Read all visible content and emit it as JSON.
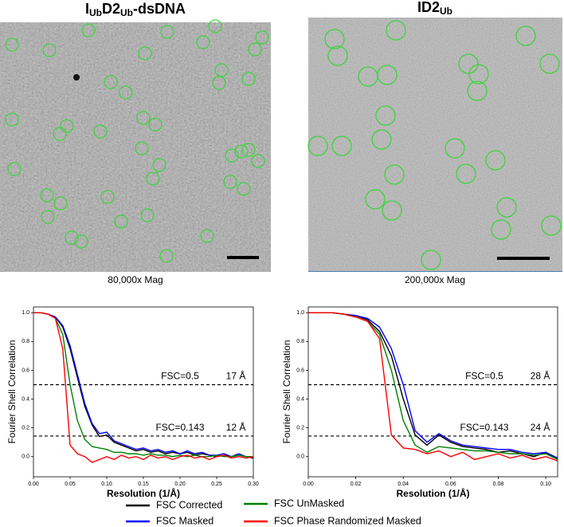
{
  "panels": [
    {
      "title": [
        "I",
        "Ub",
        "D2",
        "Ub",
        "-dsDNA"
      ],
      "caption": "80,000x Mag"
    },
    {
      "title": [
        "ID2",
        "Ub"
      ],
      "caption": "200,000x Mag"
    }
  ],
  "chart_data": [
    {
      "type": "line",
      "xlabel": "Resolution (1/Å)",
      "ylabel": "Fourier Shell Correlation",
      "xlim": [
        0,
        0.3
      ],
      "ylim": [
        -0.14,
        1.04
      ],
      "xticks": [
        {
          "value": 0,
          "label": "0.00"
        },
        {
          "value": 0.05,
          "label": "0.05"
        },
        {
          "value": 0.1,
          "label": "0.10"
        },
        {
          "value": 0.15,
          "label": "0.15"
        },
        {
          "value": 0.2,
          "label": "0.20"
        },
        {
          "value": 0.25,
          "label": "0.25"
        },
        {
          "value": 0.3,
          "label": "0.30"
        }
      ],
      "yticks": [
        {
          "value": 0,
          "label": "0.0"
        },
        {
          "value": 0.2,
          "label": "0.2"
        },
        {
          "value": 0.4,
          "label": "0.4"
        },
        {
          "value": 0.6,
          "label": "0.6"
        },
        {
          "value": 0.8,
          "label": "0.8"
        },
        {
          "value": 1,
          "label": "1.0"
        }
      ],
      "thresholds": [
        {
          "value": 0.5,
          "label": "FSC=0.5",
          "resolution": "17 Å"
        },
        {
          "value": 0.143,
          "label": "FSC=0.143",
          "resolution": "12 Å"
        }
      ],
      "x": [
        0,
        0.01,
        0.02,
        0.03,
        0.04,
        0.05,
        0.06,
        0.07,
        0.08,
        0.09,
        0.1,
        0.11,
        0.12,
        0.13,
        0.14,
        0.15,
        0.16,
        0.17,
        0.18,
        0.19,
        0.2,
        0.21,
        0.22,
        0.23,
        0.24,
        0.25,
        0.26,
        0.27,
        0.28,
        0.29,
        0.3
      ],
      "series": [
        {
          "name": "FSC Corrected",
          "color": "#000000",
          "values": [
            1,
            1,
            0.99,
            0.97,
            0.9,
            0.75,
            0.55,
            0.35,
            0.22,
            0.14,
            0.15,
            0.1,
            0.08,
            0.06,
            0.04,
            0.05,
            0.03,
            0.04,
            0.02,
            0.03,
            0.02,
            0.03,
            0.01,
            0.02,
            0.01,
            0,
            0.01,
            0,
            0.01,
            0,
            -0.01
          ]
        },
        {
          "name": "FSC Masked",
          "color": "#0000ff",
          "values": [
            1,
            1,
            0.99,
            0.97,
            0.91,
            0.77,
            0.57,
            0.37,
            0.23,
            0.16,
            0.17,
            0.11,
            0.09,
            0.07,
            0.05,
            0.06,
            0.04,
            0.05,
            0.03,
            0.04,
            0.02,
            0.04,
            0.02,
            0.03,
            0.01,
            0.01,
            0.02,
            0,
            0.02,
            0,
            0
          ]
        },
        {
          "name": "FSC UnMasked",
          "color": "#008000",
          "values": [
            1,
            1,
            0.99,
            0.96,
            0.85,
            0.5,
            0.25,
            0.12,
            0.07,
            0.06,
            0.05,
            0.03,
            0.03,
            0.02,
            0.02,
            0.01,
            0.02,
            0.01,
            0.01,
            0,
            0.01,
            0,
            0.01,
            0,
            0,
            0.01,
            0,
            0,
            0.01,
            0,
            0
          ]
        },
        {
          "name": "FSC Phase Randomized Masked",
          "color": "#ff0000",
          "values": [
            1,
            1,
            0.99,
            0.96,
            0.75,
            0.08,
            0.02,
            0,
            -0.04,
            -0.02,
            0,
            -0.02,
            0.01,
            -0.01,
            0,
            -0.02,
            0.01,
            -0.01,
            0,
            -0.02,
            0,
            0.01,
            -0.01,
            0,
            -0.02,
            0,
            0.01,
            -0.01,
            0,
            -0.01,
            0
          ]
        }
      ]
    },
    {
      "type": "line",
      "xlabel": "Resolution (1/Å)",
      "ylabel": "Fourier Shell Correlation",
      "xlim": [
        0,
        0.105
      ],
      "ylim": [
        -0.14,
        1.04
      ],
      "xticks": [
        {
          "value": 0,
          "label": "0.00"
        },
        {
          "value": 0.02,
          "label": "0.02"
        },
        {
          "value": 0.04,
          "label": "0.04"
        },
        {
          "value": 0.06,
          "label": "0.06"
        },
        {
          "value": 0.08,
          "label": "0.08"
        },
        {
          "value": 0.1,
          "label": "0.10"
        }
      ],
      "yticks": [
        {
          "value": 0,
          "label": "0.0"
        },
        {
          "value": 0.2,
          "label": "0.2"
        },
        {
          "value": 0.4,
          "label": "0.4"
        },
        {
          "value": 0.6,
          "label": "0.6"
        },
        {
          "value": 0.8,
          "label": "0.8"
        },
        {
          "value": 1,
          "label": "1.0"
        }
      ],
      "thresholds": [
        {
          "value": 0.5,
          "label": "FSC=0.5",
          "resolution": "28 Å"
        },
        {
          "value": 0.143,
          "label": "FSC=0.143",
          "resolution": "24 Å"
        }
      ],
      "x": [
        0,
        0.005,
        0.01,
        0.015,
        0.02,
        0.025,
        0.03,
        0.035,
        0.04,
        0.045,
        0.05,
        0.055,
        0.06,
        0.065,
        0.07,
        0.075,
        0.08,
        0.085,
        0.09,
        0.095,
        0.1,
        0.105
      ],
      "series": [
        {
          "name": "FSC Corrected",
          "color": "#000000",
          "values": [
            1,
            1,
            1,
            0.99,
            0.98,
            0.95,
            0.87,
            0.7,
            0.4,
            0.15,
            0.08,
            0.15,
            0.1,
            0.07,
            0.06,
            0.05,
            0.03,
            0.04,
            0.02,
            0,
            0.03,
            -0.02
          ]
        },
        {
          "name": "FSC Masked",
          "color": "#0000ff",
          "values": [
            1,
            1,
            1,
            0.99,
            0.98,
            0.96,
            0.9,
            0.75,
            0.5,
            0.18,
            0.1,
            0.16,
            0.11,
            0.08,
            0.07,
            0.06,
            0.05,
            0.05,
            0.03,
            0.02,
            0.03,
            -0.01
          ]
        },
        {
          "name": "FSC UnMasked",
          "color": "#008000",
          "values": [
            1,
            1,
            1,
            0.99,
            0.97,
            0.94,
            0.85,
            0.6,
            0.25,
            0.08,
            0.03,
            0.07,
            0.06,
            0.05,
            0.04,
            0.04,
            0.03,
            0.02,
            0.02,
            0.01,
            0.02,
            -0.02
          ]
        },
        {
          "name": "FSC Phase Randomized Masked",
          "color": "#ff0000",
          "values": [
            1,
            1,
            1,
            0.99,
            0.97,
            0.94,
            0.82,
            0.15,
            0.06,
            0.05,
            0.02,
            0.04,
            0,
            0.03,
            -0.02,
            0,
            0.02,
            -0.01,
            0.01,
            -0.02,
            0,
            -0.03
          ]
        }
      ]
    }
  ]
}
